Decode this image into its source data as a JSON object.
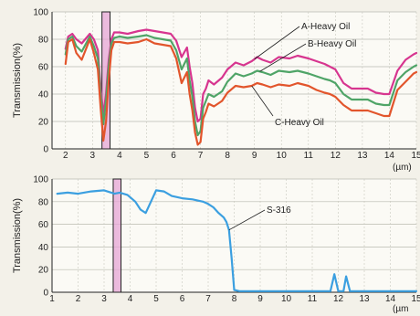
{
  "chart_data": [
    {
      "type": "line",
      "ylabel": "Transmission(%)",
      "xunit": "(µm)",
      "xlim": [
        1.5,
        15
      ],
      "ylim": [
        0,
        100
      ],
      "x_ticks": [
        2,
        3,
        4,
        5,
        6,
        7,
        8,
        9,
        10,
        11,
        12,
        13,
        14,
        15
      ],
      "y_ticks": [
        0,
        20,
        40,
        60,
        80,
        100
      ],
      "grid": true,
      "highlight_band": {
        "from": 3.35,
        "to": 3.65,
        "color": "#e6a4d4"
      },
      "series": [
        {
          "name": "A-Heavy Oil",
          "color": "#d7358f",
          "x": [
            2.0,
            2.1,
            2.25,
            2.4,
            2.6,
            2.9,
            3.05,
            3.2,
            3.3,
            3.4,
            3.5,
            3.6,
            3.7,
            3.8,
            4.0,
            4.3,
            4.7,
            5.0,
            5.3,
            5.6,
            5.9,
            6.1,
            6.3,
            6.5,
            6.6,
            6.7,
            6.8,
            6.9,
            7.0,
            7.1,
            7.2,
            7.3,
            7.5,
            7.8,
            8.0,
            8.3,
            8.6,
            8.9,
            9.1,
            9.3,
            9.6,
            9.9,
            10.3,
            10.6,
            11.0,
            11.3,
            11.6,
            11.8,
            12.0,
            12.3,
            12.6,
            12.9,
            13.2,
            13.5,
            13.8,
            14.0,
            14.3,
            14.6,
            14.9,
            15.0
          ],
          "y": [
            73,
            82,
            84,
            80,
            77,
            84,
            80,
            72,
            45,
            25,
            40,
            65,
            80,
            85,
            85,
            84,
            86,
            87,
            86,
            85,
            84,
            79,
            67,
            74,
            60,
            48,
            30,
            20,
            22,
            40,
            44,
            50,
            47,
            52,
            58,
            63,
            61,
            64,
            67,
            65,
            63,
            67,
            66,
            68,
            66,
            64,
            62,
            60,
            58,
            48,
            44,
            44,
            44,
            41,
            40,
            40,
            57,
            65,
            69,
            70
          ]
        },
        {
          "name": "B-Heavy Oil",
          "color": "#4fa467",
          "x": [
            2.0,
            2.1,
            2.25,
            2.4,
            2.6,
            2.9,
            3.05,
            3.2,
            3.3,
            3.4,
            3.5,
            3.6,
            3.7,
            3.8,
            4.0,
            4.3,
            4.7,
            5.0,
            5.3,
            5.6,
            5.9,
            6.1,
            6.3,
            6.5,
            6.6,
            6.7,
            6.8,
            6.9,
            7.0,
            7.1,
            7.2,
            7.3,
            7.5,
            7.8,
            8.0,
            8.3,
            8.6,
            8.9,
            9.1,
            9.3,
            9.6,
            9.9,
            10.3,
            10.6,
            11.0,
            11.3,
            11.6,
            11.8,
            12.0,
            12.3,
            12.6,
            12.9,
            13.2,
            13.5,
            13.8,
            14.0,
            14.3,
            14.6,
            14.9,
            15.0
          ],
          "y": [
            69,
            80,
            82,
            75,
            71,
            82,
            75,
            66,
            40,
            18,
            35,
            60,
            77,
            81,
            82,
            81,
            82,
            83,
            81,
            80,
            79,
            72,
            58,
            66,
            50,
            38,
            20,
            10,
            13,
            30,
            35,
            40,
            38,
            42,
            49,
            55,
            53,
            55,
            57,
            56,
            54,
            57,
            56,
            57,
            55,
            53,
            51,
            50,
            48,
            40,
            36,
            36,
            36,
            33,
            32,
            32,
            50,
            56,
            60,
            61
          ]
        },
        {
          "name": "C-Heavy Oil",
          "color": "#e2552c",
          "x": [
            2.0,
            2.1,
            2.25,
            2.4,
            2.6,
            2.9,
            3.05,
            3.2,
            3.3,
            3.4,
            3.5,
            3.6,
            3.7,
            3.8,
            4.0,
            4.3,
            4.7,
            5.0,
            5.3,
            5.6,
            5.9,
            6.1,
            6.3,
            6.5,
            6.6,
            6.7,
            6.8,
            6.9,
            7.0,
            7.1,
            7.2,
            7.3,
            7.5,
            7.8,
            8.0,
            8.3,
            8.6,
            8.9,
            9.1,
            9.3,
            9.6,
            9.9,
            10.3,
            10.6,
            11.0,
            11.3,
            11.6,
            11.8,
            12.0,
            12.3,
            12.6,
            12.9,
            13.2,
            13.5,
            13.8,
            14.0,
            14.3,
            14.6,
            14.9,
            15.0
          ],
          "y": [
            62,
            78,
            80,
            70,
            65,
            80,
            70,
            58,
            30,
            6,
            20,
            50,
            72,
            78,
            78,
            77,
            78,
            80,
            77,
            76,
            75,
            66,
            48,
            56,
            40,
            28,
            12,
            3,
            5,
            22,
            27,
            33,
            31,
            35,
            41,
            46,
            45,
            46,
            48,
            47,
            45,
            47,
            46,
            48,
            46,
            43,
            41,
            40,
            38,
            32,
            28,
            28,
            28,
            26,
            24,
            24,
            43,
            49,
            55,
            56
          ]
        }
      ],
      "annotations": [
        {
          "text": "A-Heavy Oil",
          "series": "A-Heavy Oil"
        },
        {
          "text": "B-Heavy Oil",
          "series": "B-Heavy Oil"
        },
        {
          "text": "C-Heavy Oil",
          "series": "C-Heavy Oil"
        }
      ]
    },
    {
      "type": "line",
      "ylabel": "Transmission(%)",
      "xunit": "(µm",
      "xlim": [
        1,
        15
      ],
      "ylim": [
        0,
        100
      ],
      "x_ticks": [
        1,
        2,
        3,
        4,
        5,
        6,
        7,
        8,
        9,
        10,
        11,
        12,
        13,
        14,
        15
      ],
      "y_ticks": [
        0,
        20,
        40,
        60,
        80,
        100
      ],
      "grid": true,
      "highlight_band": {
        "from": 3.35,
        "to": 3.65,
        "color": "#e6a4d4"
      },
      "series": [
        {
          "name": "S-316",
          "color": "#3b9fe0",
          "x": [
            1.2,
            1.6,
            2.0,
            2.5,
            3.0,
            3.4,
            3.6,
            3.9,
            4.2,
            4.4,
            4.6,
            4.8,
            5.0,
            5.3,
            5.6,
            6.0,
            6.4,
            6.8,
            7.0,
            7.2,
            7.4,
            7.6,
            7.7,
            7.8,
            7.9,
            8.0,
            8.2,
            8.6,
            9.0,
            10.0,
            11.0,
            11.7,
            11.85,
            12.0,
            12.2,
            12.3,
            12.45,
            12.6,
            13.0,
            14.0,
            15.0
          ],
          "y": [
            87,
            88,
            87,
            89,
            90,
            87,
            88,
            86,
            80,
            73,
            70,
            80,
            90,
            89,
            85,
            83,
            82,
            80,
            78,
            75,
            70,
            66,
            62,
            55,
            30,
            2,
            1,
            1,
            1,
            1,
            1,
            1,
            16,
            1,
            1,
            14,
            1,
            1,
            1,
            1,
            1
          ]
        }
      ],
      "annotations": [
        {
          "text": "S-316",
          "series": "S-316"
        }
      ]
    }
  ]
}
